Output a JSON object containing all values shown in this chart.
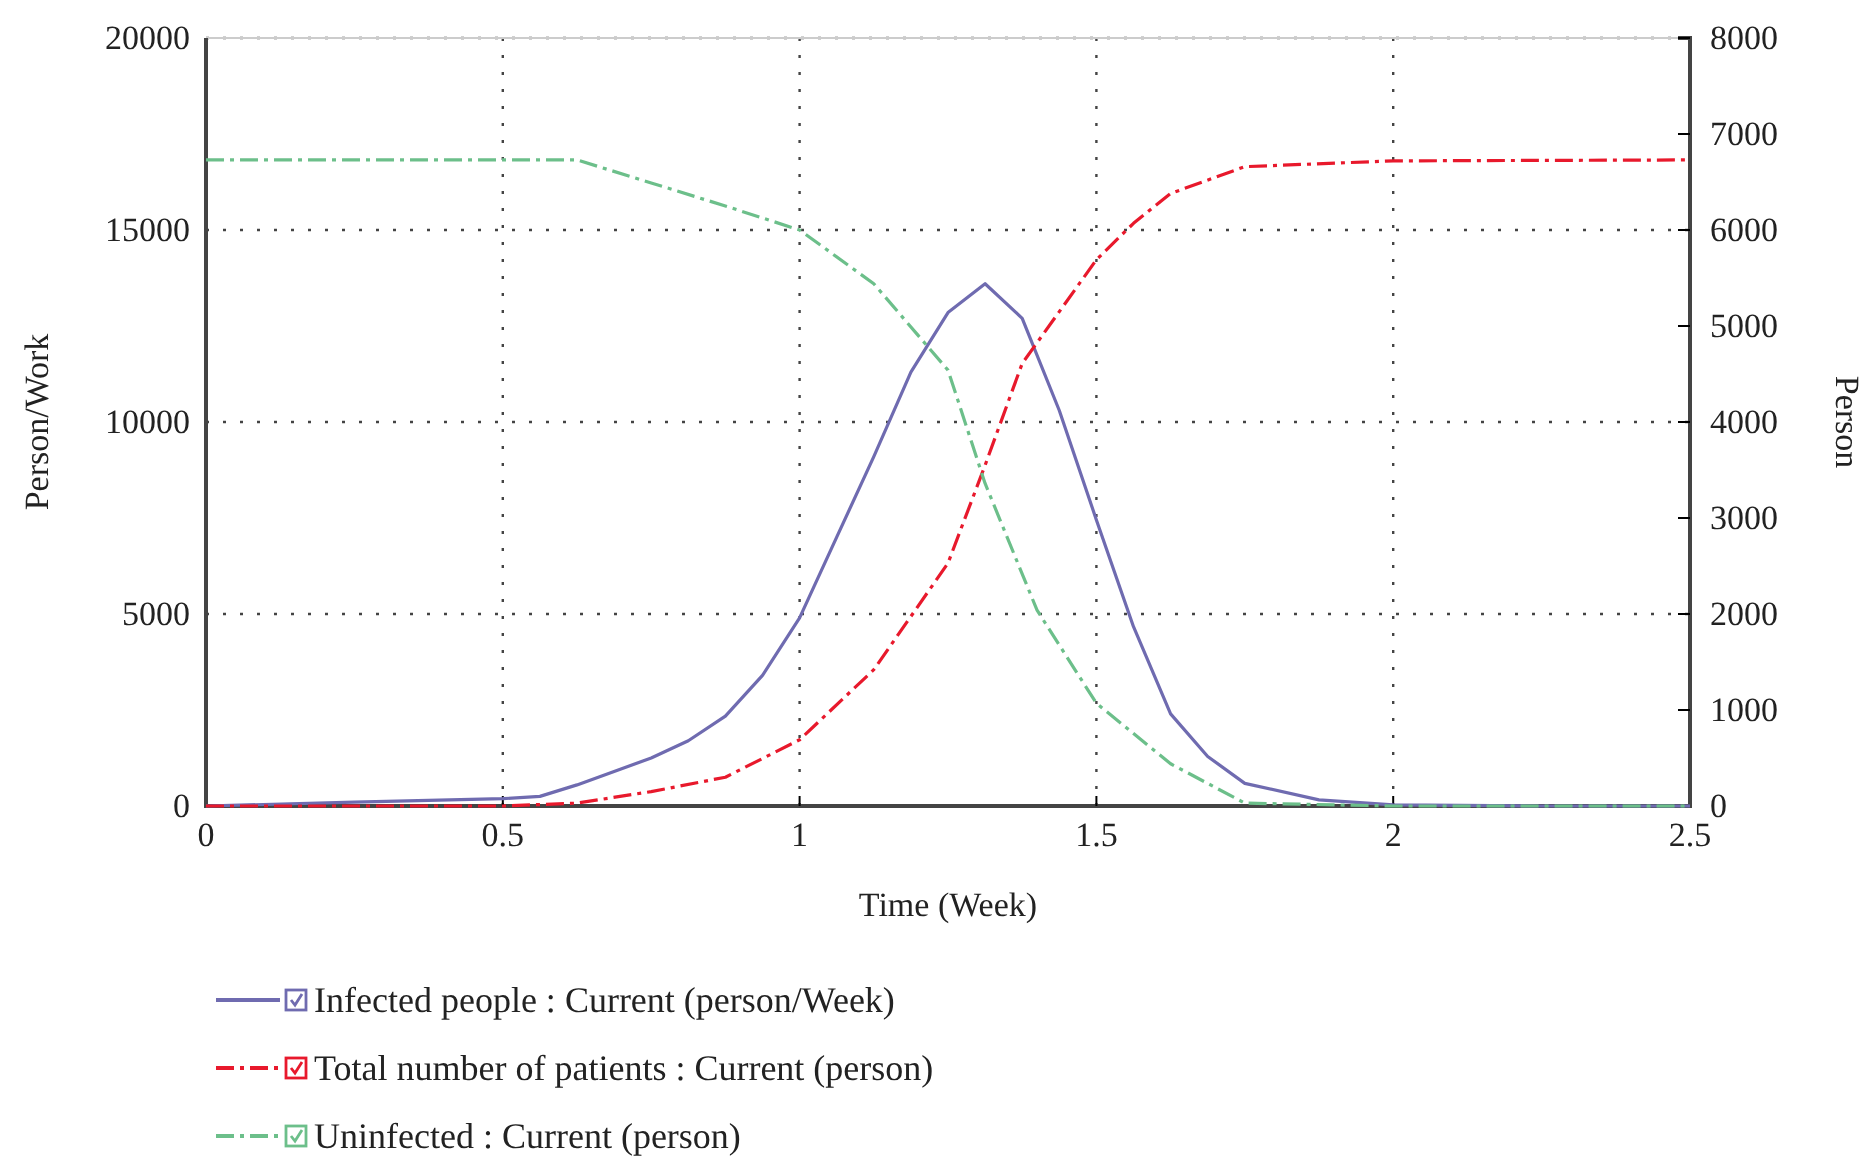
{
  "chart_data": {
    "type": "line",
    "xlabel": "Time (Week)",
    "ylabel": "Person/Work",
    "y2label": "Person",
    "xlim": [
      0,
      2.5
    ],
    "xticks": [
      0,
      0.5,
      1,
      1.5,
      2,
      2.5
    ],
    "ylim": [
      0,
      20000
    ],
    "yticks": [
      0,
      5000,
      10000,
      15000,
      20000
    ],
    "y2lim": [
      0,
      8000
    ],
    "y2ticks": [
      0,
      1000,
      2000,
      3000,
      4000,
      5000,
      6000,
      7000,
      8000
    ],
    "grid": true,
    "legend": "bottom",
    "marker": "none",
    "series": [
      {
        "name": "Infected people : Current (person/Week)",
        "color": "#6f6bb0",
        "line_style": "solid",
        "x": [
          0,
          0.25,
          0.5,
          0.5625,
          0.625,
          0.6875,
          0.75,
          0.8125,
          0.875,
          0.9375,
          1,
          1.0625,
          1.125,
          1.1875,
          1.25,
          1.3125,
          1.375,
          1.4375,
          1.5,
          1.5625,
          1.625,
          1.6875,
          1.75,
          1.875,
          2,
          2.25,
          2.5
        ],
        "values": [
          0,
          100,
          190,
          250,
          550,
          900,
          1250,
          1700,
          2340,
          3400,
          4900,
          7000,
          9100,
          11300,
          12850,
          13600,
          12700,
          10300,
          7450,
          4670,
          2400,
          1290,
          590,
          160,
          30,
          0,
          0
        ]
      },
      {
        "name": "Total number of patients : Current (person)",
        "color": "#e8192c",
        "line_style": "dashed",
        "axis": "y2",
        "x": [
          0,
          0.5,
          0.625,
          0.75,
          0.875,
          1,
          1.125,
          1.25,
          1.3125,
          1.375,
          1.5,
          1.5625,
          1.625,
          1.75,
          2,
          2.5
        ],
        "values": [
          0,
          0,
          30,
          150,
          300,
          690,
          1420,
          2530,
          3550,
          4610,
          5690,
          6070,
          6380,
          6660,
          6720,
          6730
        ]
      },
      {
        "name": "Uninfected : Current (person)",
        "color": "#6cbf8a",
        "line_style": "dashed",
        "axis": "y2",
        "x": [
          0,
          0.625,
          0.75,
          0.875,
          1,
          1.125,
          1.25,
          1.3125,
          1.4,
          1.5,
          1.625,
          1.75,
          2,
          2.5
        ],
        "values": [
          6730,
          6730,
          6490,
          6250,
          6000,
          5440,
          4540,
          3360,
          2040,
          1070,
          440,
          30,
          0,
          0
        ]
      }
    ]
  }
}
